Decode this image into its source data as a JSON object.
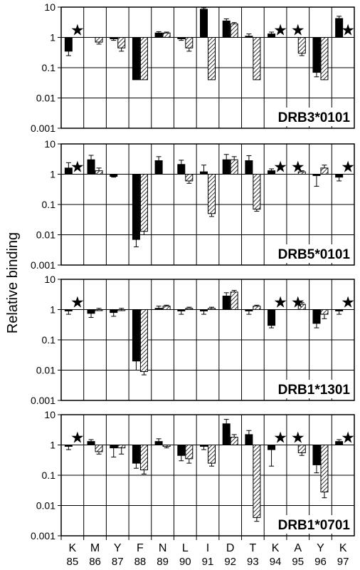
{
  "chart_data": {
    "type": "bar",
    "ylabel": "Relative binding",
    "yscale": "log",
    "ylim": [
      0.001,
      10
    ],
    "yticks": [
      "10",
      "1",
      "0.1",
      "0.01",
      "0.001"
    ],
    "categories": [
      {
        "residue": "K",
        "position": "85"
      },
      {
        "residue": "M",
        "position": "86"
      },
      {
        "residue": "Y",
        "position": "87"
      },
      {
        "residue": "F",
        "position": "88"
      },
      {
        "residue": "N",
        "position": "89"
      },
      {
        "residue": "L",
        "position": "90"
      },
      {
        "residue": "I",
        "position": "91"
      },
      {
        "residue": "D",
        "position": "92"
      },
      {
        "residue": "T",
        "position": "93"
      },
      {
        "residue": "K",
        "position": "94"
      },
      {
        "residue": "A",
        "position": "95"
      },
      {
        "residue": "Y",
        "position": "96"
      },
      {
        "residue": "K",
        "position": "97"
      }
    ],
    "series_styles": [
      {
        "fill": "solid-black"
      },
      {
        "fill": "diagonal-hatch"
      }
    ],
    "star_marker": "★",
    "panels": [
      {
        "title": "DRB3*0101",
        "solid": [
          0.35,
          null,
          0.9,
          0.04,
          1.4,
          0.9,
          8.5,
          3.5,
          1.1,
          1.3,
          null,
          0.07,
          4.2
        ],
        "solid_err": [
          0.1,
          0,
          0.1,
          0,
          0.15,
          0.1,
          1.0,
          0.6,
          0.2,
          0.2,
          0,
          0.02,
          0.8
        ],
        "hatched": [
          null,
          0.7,
          0.45,
          0.04,
          1.4,
          0.45,
          0.04,
          2.8,
          0.04,
          null,
          0.3,
          0.04,
          null
        ],
        "hatched_err": [
          0,
          0.1,
          0.1,
          0,
          0.1,
          0.1,
          0,
          0.3,
          0,
          0,
          0.05,
          0,
          0
        ],
        "stars": [
          0,
          9,
          10,
          12
        ]
      },
      {
        "title": "DRB5*0101",
        "solid": [
          1.6,
          3.0,
          0.85,
          0.007,
          2.8,
          2.1,
          1.2,
          3.0,
          2.8,
          1.3,
          null,
          0.9,
          0.8
        ],
        "solid_err": [
          0.8,
          1.2,
          0.05,
          0.003,
          1.0,
          0.8,
          0.8,
          1.5,
          1.3,
          0.2,
          0,
          0.5,
          0.2
        ],
        "hatched": [
          null,
          1.3,
          null,
          0.013,
          null,
          0.6,
          0.05,
          3.0,
          0.07,
          null,
          1.2,
          1.6,
          null
        ],
        "hatched_err": [
          0,
          0.3,
          0,
          0.003,
          0,
          0.1,
          0.01,
          0.8,
          0.01,
          0,
          0.1,
          0.4,
          0
        ],
        "stars": [
          0,
          9,
          10,
          12
        ]
      },
      {
        "title": "DRB1*1301",
        "solid": [
          0.9,
          0.75,
          0.8,
          0.02,
          1.1,
          0.9,
          0.9,
          2.8,
          0.9,
          0.3,
          null,
          0.35,
          0.9
        ],
        "solid_err": [
          0.2,
          0.2,
          0.2,
          0.01,
          0.2,
          0.2,
          0.2,
          0.8,
          0.2,
          0.05,
          0,
          0.1,
          0.2
        ],
        "hatched": [
          null,
          1.0,
          1.0,
          0.009,
          1.3,
          1.1,
          1.1,
          3.8,
          1.3,
          null,
          1.5,
          0.7,
          null
        ],
        "hatched_err": [
          0,
          0.1,
          0.1,
          0.002,
          0.1,
          0.1,
          0.1,
          0.5,
          0.1,
          0,
          0.2,
          0.2,
          0
        ],
        "stars": [
          0,
          9,
          10,
          12
        ]
      },
      {
        "title": "DRB1*0701",
        "solid": [
          0.9,
          1.3,
          0.8,
          0.25,
          1.3,
          0.45,
          0.9,
          5.0,
          2.2,
          0.7,
          null,
          0.22,
          1.3
        ],
        "solid_err": [
          0.2,
          0.2,
          0.4,
          0.08,
          0.3,
          0.15,
          0.2,
          2.0,
          0.8,
          0.5,
          0,
          0.1,
          0.2
        ],
        "hatched": [
          null,
          0.6,
          0.8,
          0.15,
          0.9,
          0.35,
          0.25,
          1.8,
          0.004,
          null,
          0.55,
          0.028,
          null
        ],
        "hatched_err": [
          0,
          0.1,
          0.3,
          0.04,
          0.1,
          0.1,
          0.05,
          0.4,
          0.001,
          0,
          0.1,
          0.01,
          0
        ],
        "stars": [
          0,
          9,
          10,
          12
        ]
      }
    ]
  }
}
